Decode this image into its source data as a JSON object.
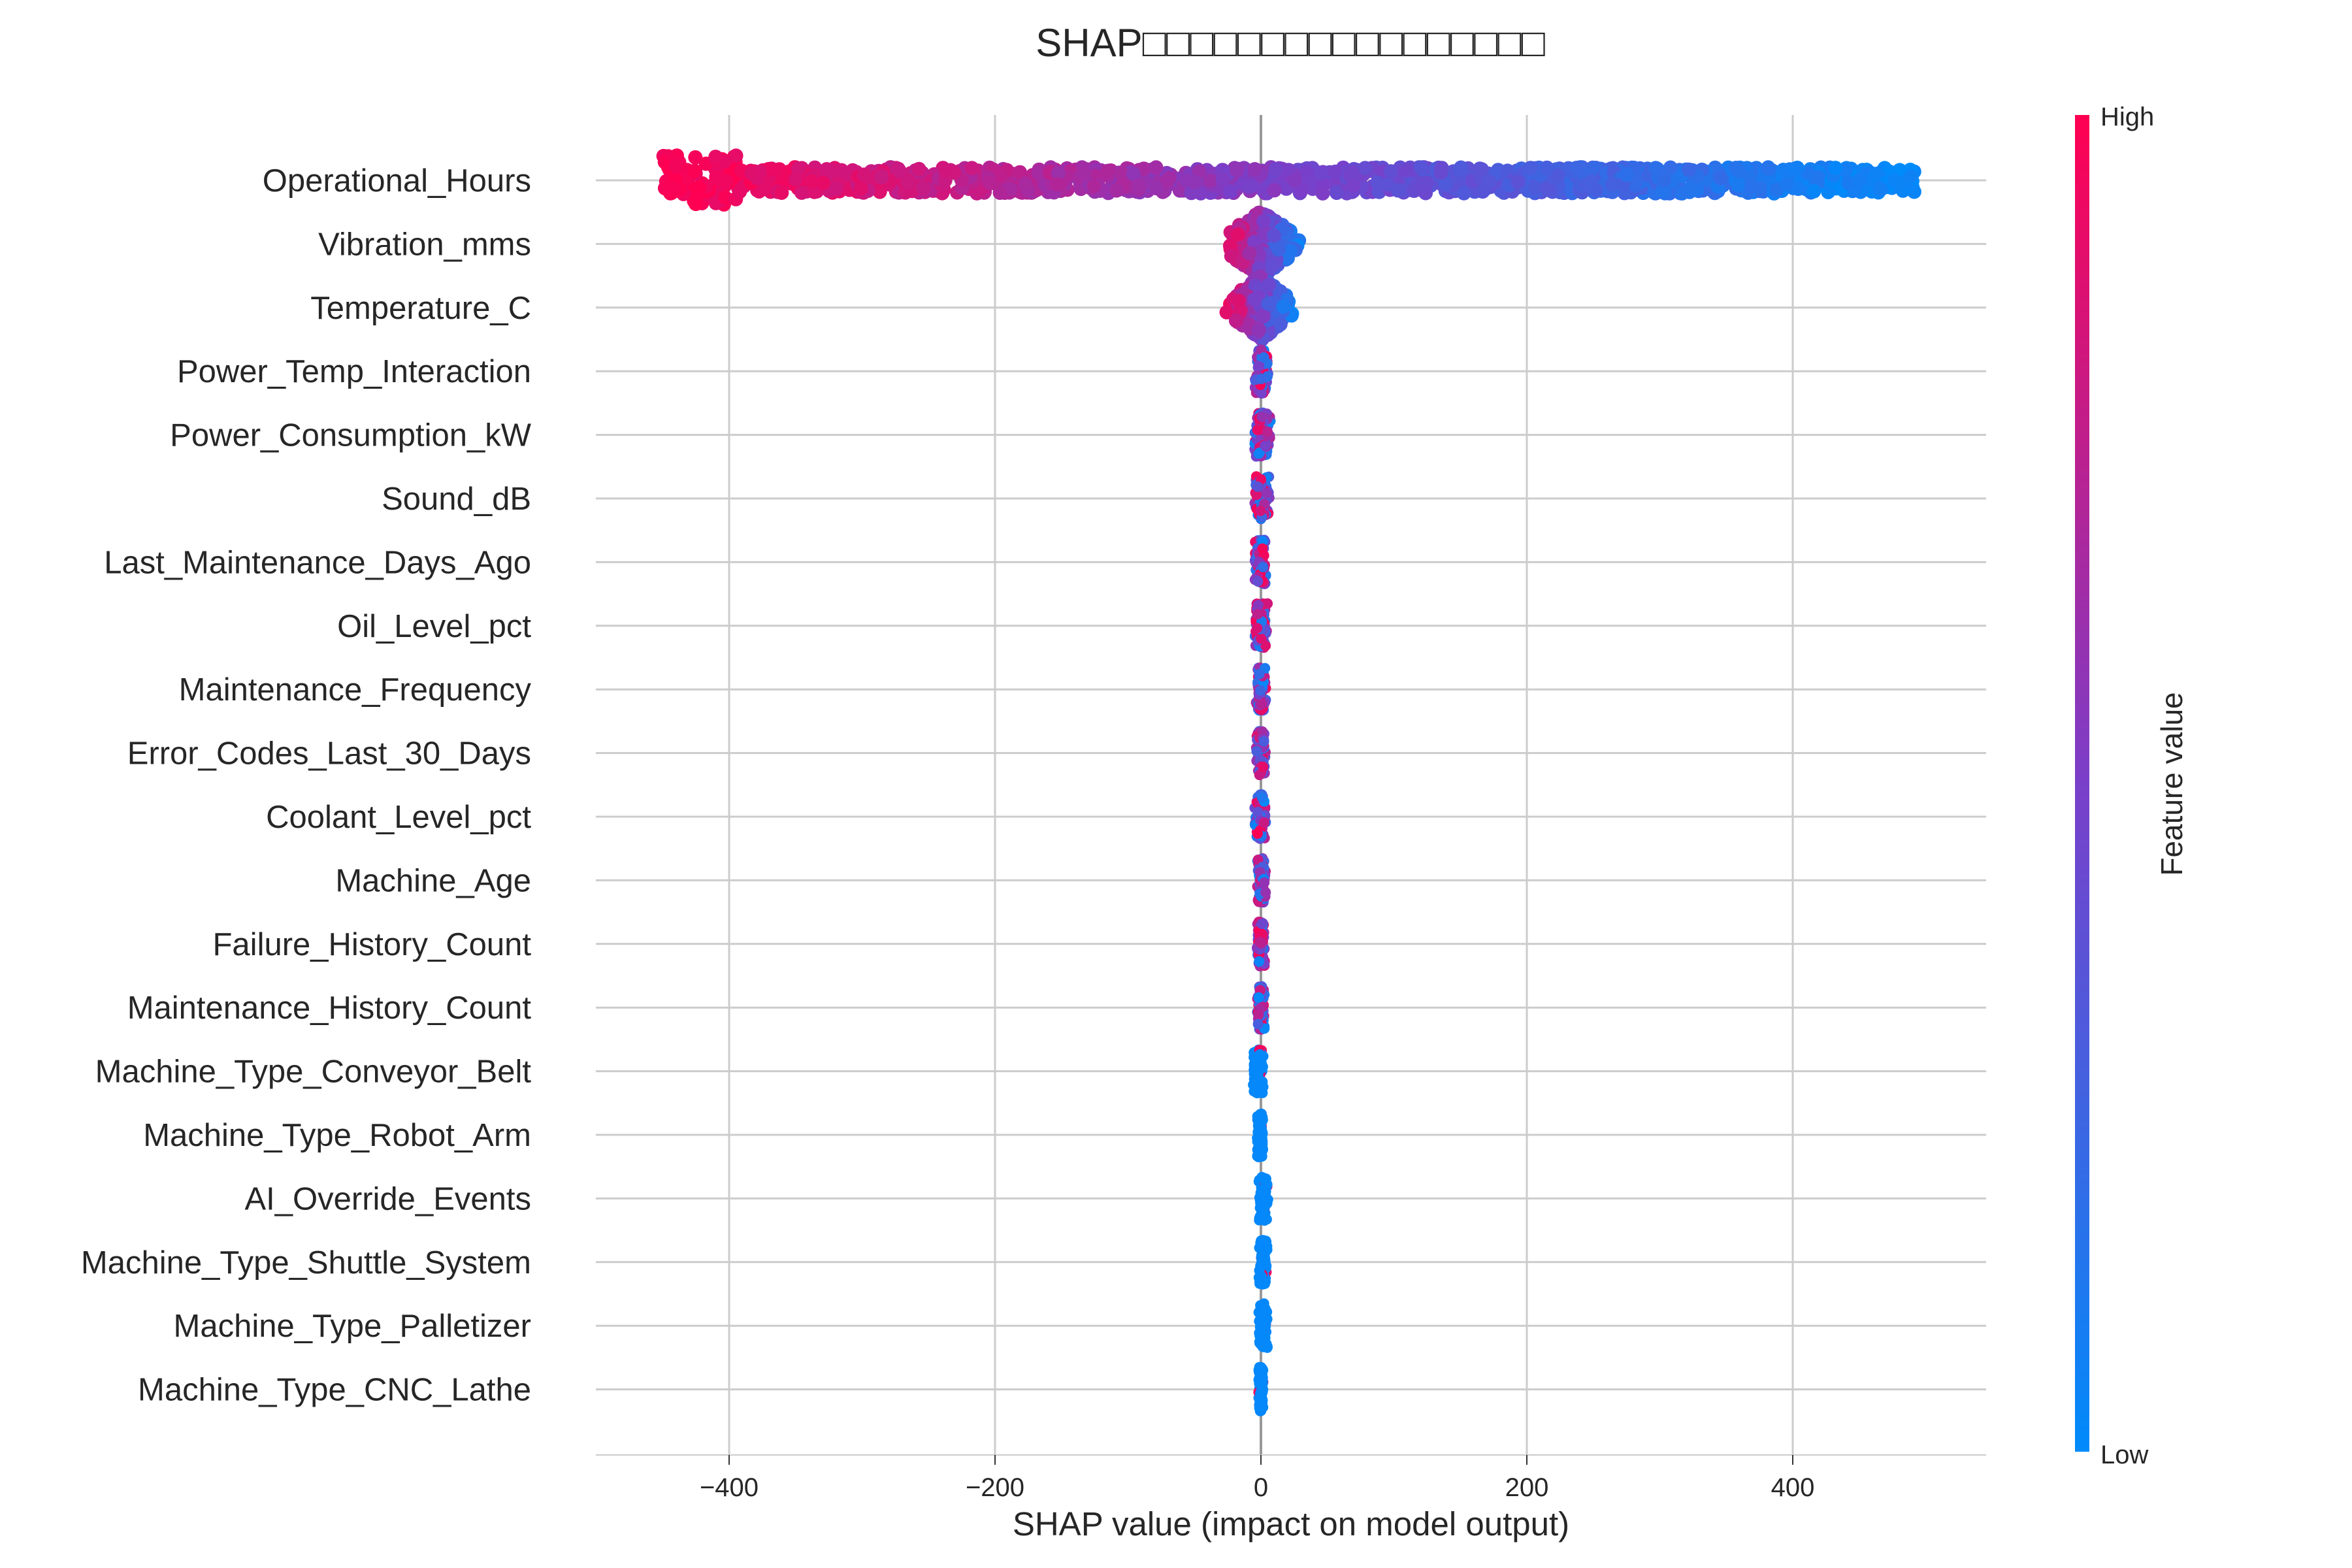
{
  "chart_data": {
    "type": "scatter",
    "subtype": "shap-beeswarm-summary",
    "title": "SHAP□□□□□□□□□□□□□□□□□",
    "xlabel": "SHAP value (impact on model output)",
    "ylabel": "",
    "xlim": [
      -500,
      545
    ],
    "x_ticks": [
      -400,
      -200,
      0,
      200,
      400
    ],
    "grid": true,
    "colorbar": {
      "title": "Feature value",
      "high_label": "High",
      "low_label": "Low",
      "low_color": "#008bfb",
      "mid_color": "#7a3fc9",
      "high_color": "#ff0052"
    },
    "features": [
      {
        "name": "Operational_Hours",
        "shap_min": -450,
        "shap_max": 492,
        "spread": "wide"
      },
      {
        "name": "Vibration_mms",
        "shap_min": -30,
        "shap_max": 34,
        "spread": "narrow"
      },
      {
        "name": "Temperature_C",
        "shap_min": -28,
        "shap_max": 26,
        "spread": "narrow"
      },
      {
        "name": "Power_Temp_Interaction",
        "shap_min": -5,
        "shap_max": 6,
        "spread": "tiny"
      },
      {
        "name": "Power_Consumption_kW",
        "shap_min": -6,
        "shap_max": 8,
        "spread": "tiny"
      },
      {
        "name": "Sound_dB",
        "shap_min": -6,
        "shap_max": 7,
        "spread": "tiny"
      },
      {
        "name": "Last_Maintenance_Days_Ago",
        "shap_min": -5,
        "shap_max": 5,
        "spread": "tiny"
      },
      {
        "name": "Oil_Level_pct",
        "shap_min": -5,
        "shap_max": 5,
        "spread": "tiny"
      },
      {
        "name": "Maintenance_Frequency",
        "shap_min": -4,
        "shap_max": 4,
        "spread": "tiny"
      },
      {
        "name": "Error_Codes_Last_30_Days",
        "shap_min": -4,
        "shap_max": 4,
        "spread": "tiny"
      },
      {
        "name": "Coolant_Level_pct",
        "shap_min": -5,
        "shap_max": 4,
        "spread": "tiny"
      },
      {
        "name": "Machine_Age",
        "shap_min": -3,
        "shap_max": 4,
        "spread": "tiny"
      },
      {
        "name": "Failure_History_Count",
        "shap_min": -3,
        "shap_max": 3,
        "spread": "tiny"
      },
      {
        "name": "Maintenance_History_Count",
        "shap_min": -3,
        "shap_max": 3,
        "spread": "tiny"
      },
      {
        "name": "Machine_Type_Conveyor_Belt",
        "shap_min": -7,
        "shap_max": 2,
        "spread": "tiny"
      },
      {
        "name": "Machine_Type_Robot_Arm",
        "shap_min": -3,
        "shap_max": 2,
        "spread": "tiny"
      },
      {
        "name": "AI_Override_Events",
        "shap_min": -2,
        "shap_max": 6,
        "spread": "tiny"
      },
      {
        "name": "Machine_Type_Shuttle_System",
        "shap_min": -2,
        "shap_max": 5,
        "spread": "tiny"
      },
      {
        "name": "Machine_Type_Palletizer",
        "shap_min": -2,
        "shap_max": 5,
        "spread": "tiny"
      },
      {
        "name": "Machine_Type_CNC_Lathe",
        "shap_min": -2,
        "shap_max": 2,
        "spread": "tiny"
      }
    ]
  }
}
